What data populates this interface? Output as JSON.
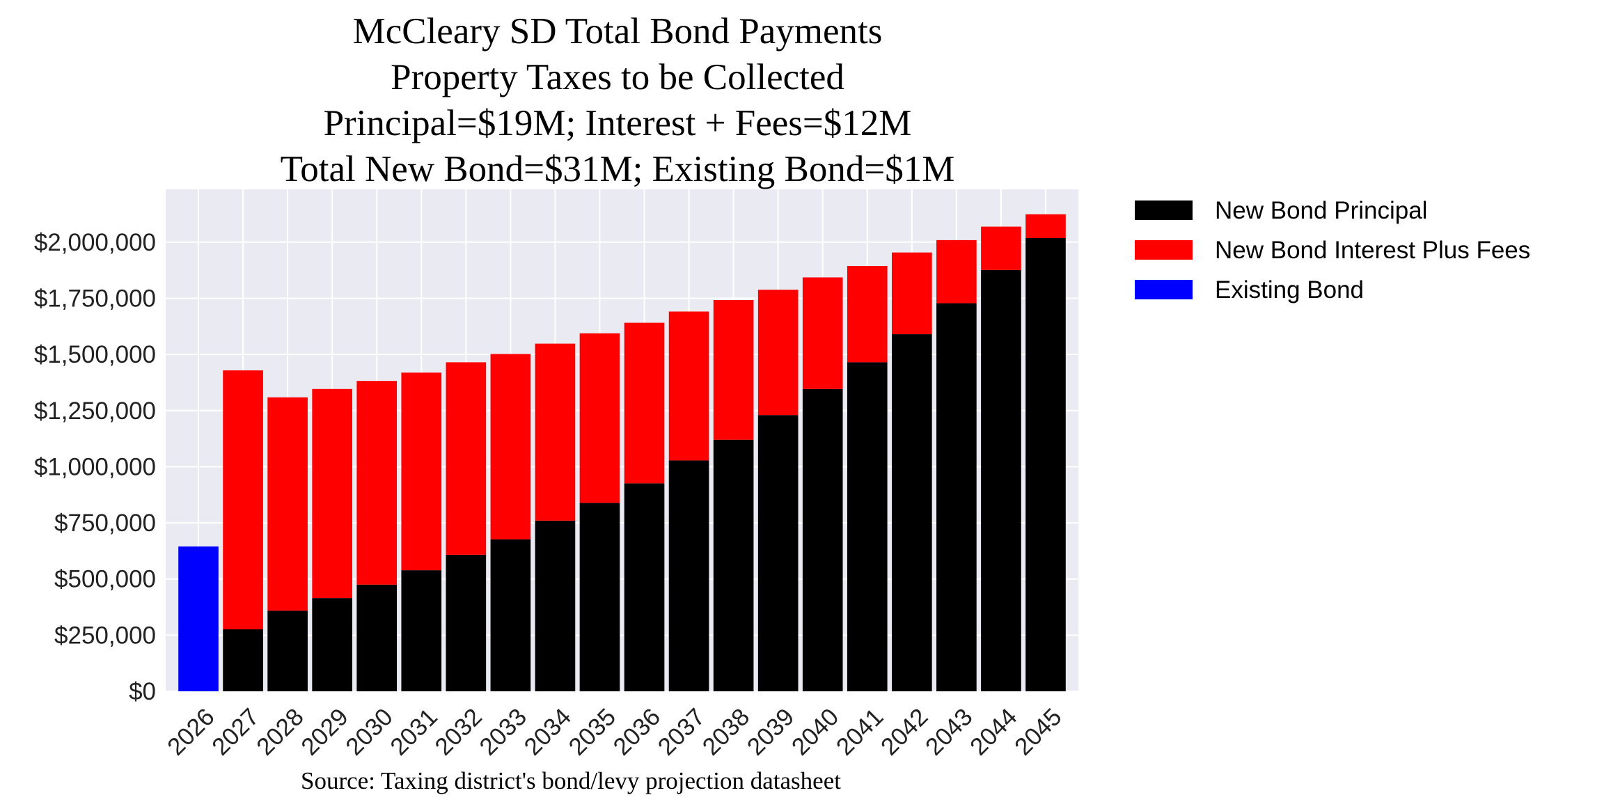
{
  "chart_data": {
    "type": "bar",
    "stacked": true,
    "title_lines": [
      "McCleary SD Total Bond Payments",
      "Property Taxes to be Collected",
      "Principal=$19M; Interest + Fees=$12M",
      "Total New Bond=$31M; Existing Bond=$1M"
    ],
    "source": "Source: Taxing district's bond/levy projection datasheet",
    "categories": [
      "2026",
      "2027",
      "2028",
      "2029",
      "2030",
      "2031",
      "2032",
      "2033",
      "2034",
      "2035",
      "2036",
      "2037",
      "2038",
      "2039",
      "2040",
      "2041",
      "2042",
      "2043",
      "2044",
      "2045"
    ],
    "series": [
      {
        "name": "New Bond Principal",
        "color": "#000000",
        "values": [
          0,
          276000,
          359000,
          415000,
          475000,
          539000,
          608000,
          677000,
          760000,
          839000,
          926000,
          1028000,
          1120000,
          1230000,
          1346000,
          1465000,
          1590000,
          1728000,
          1876000,
          2018000
        ]
      },
      {
        "name": "New Bond Interest Plus Fees",
        "color": "#ff0000",
        "values": [
          0,
          1153000,
          950000,
          931000,
          907000,
          880000,
          857000,
          825000,
          788000,
          755000,
          715000,
          663000,
          622000,
          558000,
          497000,
          429000,
          364000,
          281000,
          193000,
          106000
        ]
      },
      {
        "name": "Existing Bond",
        "color": "#0000ff",
        "values": [
          645000,
          0,
          0,
          0,
          0,
          0,
          0,
          0,
          0,
          0,
          0,
          0,
          0,
          0,
          0,
          0,
          0,
          0,
          0,
          0
        ]
      }
    ],
    "yticks": [
      0,
      250000,
      500000,
      750000,
      1000000,
      1250000,
      1500000,
      1750000,
      2000000
    ],
    "ytick_labels": [
      "$0",
      "$250,000",
      "$500,000",
      "$750,000",
      "$1,000,000",
      "$1,250,000",
      "$1,500,000",
      "$1,750,000",
      "$2,000,000"
    ],
    "ylim": [
      0,
      2235000
    ],
    "grid": true,
    "plot_background": "#eaeaf2",
    "legend_position": "outside-right-top"
  }
}
